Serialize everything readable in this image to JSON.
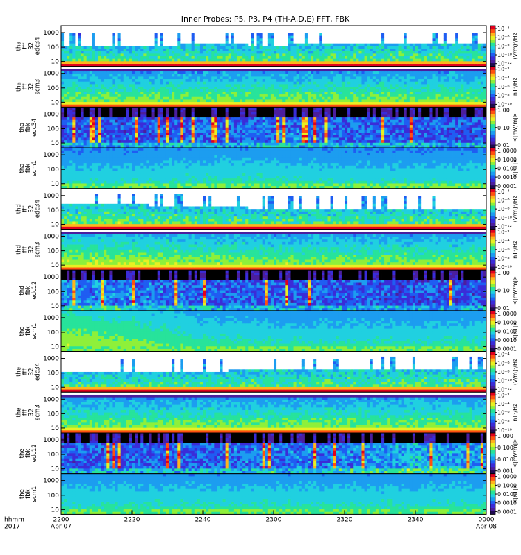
{
  "chart_data": {
    "type": "heatmap",
    "title": "Inner Probes: P5, P3, P4 (TH-A,D,E) FFT, FBK",
    "x_axis": {
      "label_lines": [
        "hhmm",
        "2017"
      ],
      "ticks": [
        "2200",
        "2220",
        "2240",
        "2300",
        "2320",
        "2340",
        "0000"
      ],
      "date_labels": [
        {
          "under": "2200",
          "text": "Apr 07"
        },
        {
          "under": "0000",
          "text": "Apr 08"
        }
      ]
    },
    "y_ticks": [
      "1000",
      "100",
      "10"
    ],
    "panels": [
      {
        "label": [
          "tha",
          "fff",
          "32",
          "edc34"
        ],
        "cb_ticks": [
          "10⁻⁴",
          "10⁻⁶",
          "10⁻⁸",
          "10⁻¹⁰",
          "10⁻¹²"
        ],
        "cb_unit": "(V/m)²/Hz",
        "pattern": "fff_e",
        "activity": [
          0.5,
          0.45,
          0.55,
          0.5,
          0.6,
          0.55,
          0.52
        ]
      },
      {
        "label": [
          "tha",
          "fff",
          "32",
          "scm3"
        ],
        "cb_ticks": [
          "10⁻²",
          "10⁻⁴",
          "10⁻⁶",
          "10⁻⁸",
          "10⁻¹⁰"
        ],
        "cb_unit": "nT²/Hz",
        "pattern": "fff_b",
        "activity": [
          0.4,
          0.4,
          0.45,
          0.4,
          0.45,
          0.42,
          0.4
        ]
      },
      {
        "label": [
          "tha",
          "fbk",
          "edc34"
        ],
        "cb_ticks": [
          "1.00",
          "0.10",
          "0.01"
        ],
        "cb_unit": "<|mV/m|>",
        "pattern": "fbk_e",
        "activity": [
          0.4,
          0.35,
          0.4,
          0.5,
          0.45,
          0.4,
          0.38
        ]
      },
      {
        "label": [
          "tha",
          "fbk",
          "scm1"
        ],
        "cb_ticks": [
          "1.0000",
          "0.1000",
          "0.0100",
          "0.0010",
          "0.0001"
        ],
        "cb_unit": "<|nT|>",
        "pattern": "fbk_b",
        "activity": [
          0.45,
          0.45,
          0.5,
          0.5,
          0.45,
          0.45,
          0.45
        ]
      },
      {
        "label": [
          "thd",
          "fff",
          "32",
          "edc34"
        ],
        "cb_ticks": [
          "10⁻⁴",
          "10⁻⁶",
          "10⁻⁸",
          "10⁻¹⁰",
          "10⁻¹²"
        ],
        "cb_unit": "(V/m)²/Hz",
        "pattern": "fff_e",
        "activity": [
          0.75,
          0.7,
          0.55,
          0.5,
          0.5,
          0.5,
          0.5
        ]
      },
      {
        "label": [
          "thd",
          "fff",
          "32",
          "scm3"
        ],
        "cb_ticks": [
          "10⁻²",
          "10⁻⁴",
          "10⁻⁶",
          "10⁻⁸",
          "10⁻¹⁰"
        ],
        "cb_unit": "nT²/Hz",
        "pattern": "fff_b",
        "activity": [
          0.8,
          0.75,
          0.6,
          0.5,
          0.48,
          0.48,
          0.48
        ]
      },
      {
        "label": [
          "thd",
          "fbk",
          "edc12"
        ],
        "cb_ticks": [
          "1.00",
          "0.10",
          "0.01"
        ],
        "cb_unit": "<|mV/m|>",
        "pattern": "fbk_e",
        "activity": [
          0.65,
          0.55,
          0.45,
          0.4,
          0.38,
          0.36,
          0.35
        ]
      },
      {
        "label": [
          "thd",
          "fbk",
          "scm1"
        ],
        "cb_ticks": [
          "1.0000",
          "0.1000",
          "0.0100",
          "0.0010",
          "0.0001"
        ],
        "cb_unit": "<|nT|>",
        "pattern": "fbk_b",
        "activity": [
          0.8,
          0.7,
          0.55,
          0.5,
          0.5,
          0.5,
          0.5
        ]
      },
      {
        "label": [
          "the",
          "fff",
          "32",
          "edc34"
        ],
        "cb_ticks": [
          "10⁻⁴",
          "10⁻⁶",
          "10⁻⁸",
          "10⁻¹⁰",
          "10⁻¹²"
        ],
        "cb_unit": "(V/m)²/Hz",
        "pattern": "fff_e",
        "activity": [
          0.45,
          0.45,
          0.5,
          0.55,
          0.55,
          0.65,
          0.6
        ]
      },
      {
        "label": [
          "the",
          "fff",
          "32",
          "scm3"
        ],
        "cb_ticks": [
          "10⁻²",
          "10⁻⁴",
          "10⁻⁶",
          "10⁻⁸",
          "10⁻¹⁰"
        ],
        "cb_unit": "nT²/Hz",
        "pattern": "fff_b",
        "activity": [
          0.4,
          0.4,
          0.42,
          0.42,
          0.42,
          0.45,
          0.42
        ]
      },
      {
        "label": [
          "the",
          "fbk",
          "edc12"
        ],
        "cb_ticks": [
          "1.000",
          "0.100",
          "0.010",
          "0.001"
        ],
        "cb_unit": "<|mV/m|>",
        "pattern": "fbk_e",
        "activity": [
          0.4,
          0.4,
          0.45,
          0.5,
          0.55,
          0.8,
          0.7
        ]
      },
      {
        "label": [
          "the",
          "fbk",
          "scm1"
        ],
        "cb_ticks": [
          "1.0000",
          "0.1000",
          "0.0100",
          "0.0010",
          "0.0001"
        ],
        "cb_unit": "<|nT|>",
        "pattern": "fbk_b",
        "activity": [
          0.5,
          0.5,
          0.5,
          0.5,
          0.5,
          0.5,
          0.5
        ]
      }
    ],
    "colorscale": [
      "#ffffff",
      "#1e0a50",
      "#4b1e9e",
      "#3a2cd8",
      "#1f5df2",
      "#1c9df0",
      "#20d0e0",
      "#27e39b",
      "#8ef03a",
      "#e8f022",
      "#ffb41c",
      "#ff5010",
      "#e0001e"
    ],
    "grid": false,
    "legend": "colorbars right of each panel"
  }
}
